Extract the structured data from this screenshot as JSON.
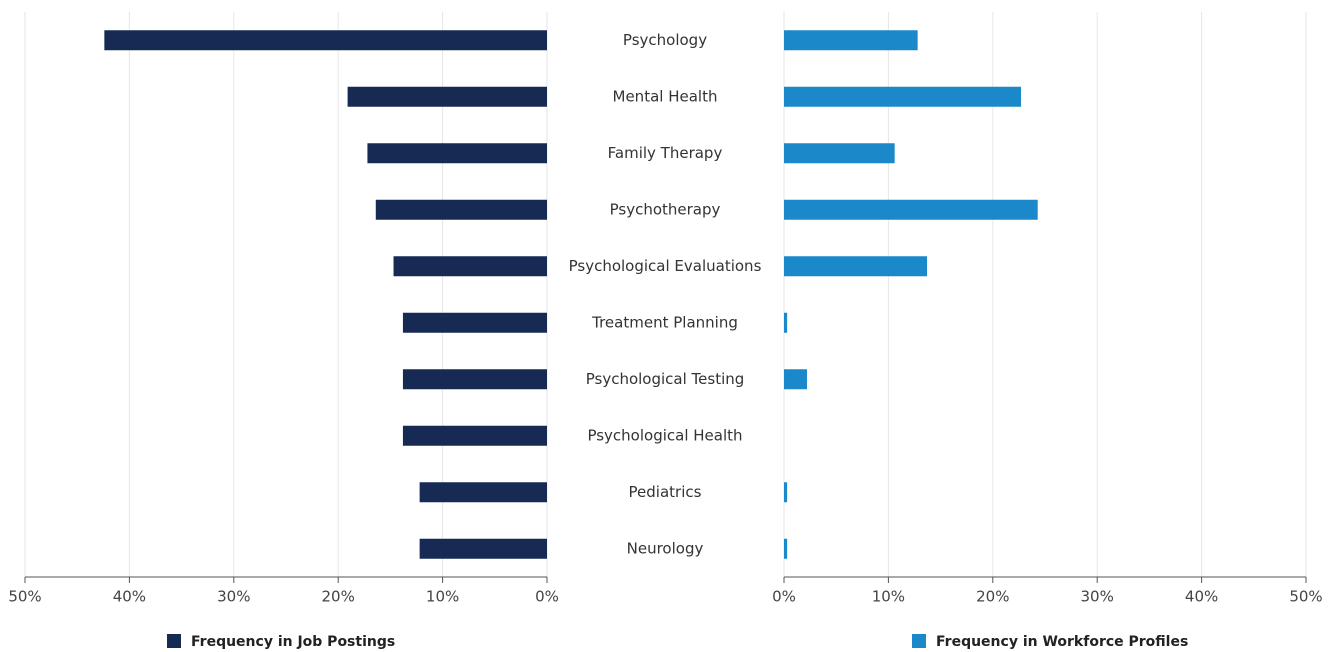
{
  "chart_data": {
    "type": "bar",
    "categories": [
      "Psychology",
      "Mental Health",
      "Family Therapy",
      "Psychotherapy",
      "Psychological Evaluations",
      "Treatment Planning",
      "Psychological Testing",
      "Psychological Health",
      "Pediatrics",
      "Neurology"
    ],
    "series": [
      {
        "name": "Frequency in Job Postings",
        "color": "#172a54",
        "values": [
          42.4,
          19.1,
          17.2,
          16.4,
          14.7,
          13.8,
          13.8,
          13.8,
          12.2,
          12.2
        ]
      },
      {
        "name": "Frequency in Workforce Profiles",
        "color": "#1a88c9",
        "values": [
          12.8,
          22.7,
          10.6,
          24.3,
          13.7,
          0.3,
          2.2,
          0,
          0.3,
          0.3
        ]
      }
    ],
    "xlim": [
      0,
      50
    ],
    "xticks": [
      {
        "value": 0,
        "label": "0%"
      },
      {
        "value": 10,
        "label": "10%"
      },
      {
        "value": 20,
        "label": "20%"
      },
      {
        "value": 30,
        "label": "30%"
      },
      {
        "value": 40,
        "label": "40%"
      },
      {
        "value": 50,
        "label": "50%"
      }
    ],
    "grid": true
  }
}
